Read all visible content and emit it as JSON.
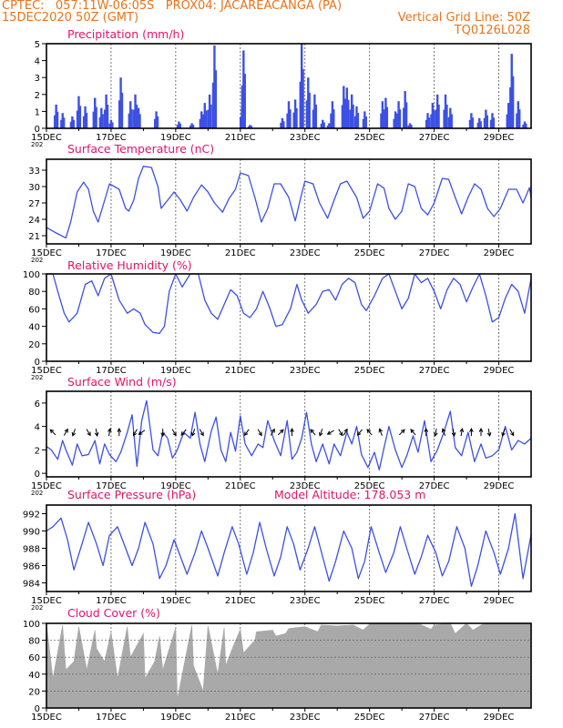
{
  "header": {
    "line1": "CPTEC:   057:11W-06:05S   PROX04: JACAREACANGA (PA)",
    "line2_left": "15DEC2020 50Z (GMT)",
    "line2_right": "Vertical Grid Line: 50Z",
    "line3_right": "TQ0126L028",
    "altitude": "Model Altitude: 178.053 m"
  },
  "colors": {
    "line": "#3c50e6",
    "bar": "#3c50e6",
    "cloud": "#a9a9a9",
    "title": "#e0146a",
    "header": "#e8741c"
  },
  "x_dates": [
    "15DEC",
    "17DEC",
    "19DEC",
    "21DEC",
    "23DEC",
    "25DEC",
    "27DEC",
    "29DEC"
  ],
  "year_label": "202",
  "chart_data": [
    {
      "type": "bar",
      "title": "Precipitation (mm/h)",
      "ylim": [
        0,
        5
      ],
      "yticks": [
        "0",
        "1",
        "2",
        "3",
        "4",
        "5"
      ],
      "x_unit": "days since 15DEC2020 00Z",
      "peaks": [
        [
          0.3,
          1.4
        ],
        [
          0.5,
          0.9
        ],
        [
          0.8,
          0.7
        ],
        [
          1.0,
          1.9
        ],
        [
          1.2,
          1.3
        ],
        [
          1.5,
          1.8
        ],
        [
          1.7,
          1.2
        ],
        [
          1.85,
          2.0
        ],
        [
          2.0,
          0.5
        ],
        [
          2.3,
          3.0
        ],
        [
          2.6,
          1.6
        ],
        [
          2.75,
          2.0
        ],
        [
          2.85,
          1.2
        ],
        [
          3.4,
          1.0
        ],
        [
          4.1,
          0.4
        ],
        [
          4.5,
          0.3
        ],
        [
          4.8,
          1.0
        ],
        [
          4.9,
          1.5
        ],
        [
          5.05,
          2.0
        ],
        [
          5.2,
          4.9
        ],
        [
          6.05,
          1.2
        ],
        [
          6.1,
          4.6
        ],
        [
          6.3,
          0.2
        ],
        [
          7.3,
          0.6
        ],
        [
          7.5,
          1.6
        ],
        [
          7.7,
          1.7
        ],
        [
          7.9,
          5.0
        ],
        [
          8.1,
          3.0
        ],
        [
          8.3,
          2.0
        ],
        [
          8.55,
          0.5
        ],
        [
          8.75,
          0.3
        ],
        [
          8.85,
          1.6
        ],
        [
          9.2,
          2.5
        ],
        [
          9.3,
          2.4
        ],
        [
          9.45,
          2.0
        ],
        [
          9.6,
          1.3
        ],
        [
          9.85,
          1.0
        ],
        [
          10.4,
          1.6
        ],
        [
          10.5,
          1.8
        ],
        [
          10.8,
          1.0
        ],
        [
          10.9,
          1.6
        ],
        [
          11.1,
          2.2
        ],
        [
          11.25,
          0.3
        ],
        [
          11.8,
          0.9
        ],
        [
          11.95,
          1.5
        ],
        [
          12.1,
          2.0
        ],
        [
          12.35,
          2.0
        ],
        [
          12.5,
          1.2
        ],
        [
          13.15,
          0.9
        ],
        [
          13.4,
          0.6
        ],
        [
          13.6,
          1.1
        ],
        [
          13.8,
          0.9
        ],
        [
          14.3,
          1.5
        ],
        [
          14.4,
          4.4
        ],
        [
          14.6,
          1.6
        ],
        [
          14.8,
          0.4
        ]
      ]
    },
    {
      "type": "line",
      "title": "Surface Temperature (nC)",
      "ylim": [
        19.5,
        35
      ],
      "yticks": [
        "21",
        "24",
        "27",
        "30",
        "33"
      ],
      "x_unit": "days since 15DEC2020 00Z",
      "x": [
        0,
        0.3,
        0.6,
        0.75,
        0.95,
        1.15,
        1.3,
        1.45,
        1.6,
        1.75,
        1.95,
        2.25,
        2.45,
        2.55,
        2.7,
        2.85,
        3.0,
        3.25,
        3.45,
        3.55,
        3.75,
        3.95,
        4.15,
        4.35,
        4.55,
        4.8,
        5.0,
        5.2,
        5.45,
        5.65,
        5.85,
        6.0,
        6.25,
        6.45,
        6.65,
        6.85,
        7.05,
        7.25,
        7.5,
        7.7,
        7.85,
        8.0,
        8.25,
        8.45,
        8.7,
        8.9,
        9.1,
        9.3,
        9.6,
        9.8,
        10.0,
        10.25,
        10.45,
        10.6,
        10.8,
        11.0,
        11.2,
        11.4,
        11.6,
        11.8,
        12.0,
        12.25,
        12.45,
        12.65,
        12.85,
        13.05,
        13.25,
        13.45,
        13.65,
        13.85,
        14.05,
        14.3,
        14.55,
        14.75,
        14.95,
        15.0
      ],
      "y": [
        22.5,
        21.5,
        20.6,
        23.5,
        29.0,
        30.8,
        29.5,
        25.5,
        23.5,
        26.5,
        30.5,
        29.5,
        26.0,
        25.5,
        27.5,
        31.5,
        33.7,
        33.5,
        30.0,
        26.0,
        27.5,
        29.0,
        27.5,
        25.5,
        28.0,
        30.3,
        29.0,
        27.0,
        25.3,
        27.8,
        29.5,
        32.5,
        32.0,
        28.0,
        23.5,
        26.0,
        30.5,
        30.5,
        28.0,
        23.7,
        27.5,
        31.0,
        30.5,
        27.0,
        24.2,
        27.5,
        30.5,
        31.0,
        28.0,
        24.2,
        25.5,
        30.5,
        29.7,
        26.0,
        24.0,
        25.5,
        30.5,
        30.0,
        26.0,
        24.8,
        27.0,
        31.5,
        31.3,
        28.0,
        25.0,
        28.0,
        30.5,
        29.5,
        26.0,
        24.5,
        26.0,
        29.5,
        29.5,
        27.0,
        29.8,
        28.0
      ]
    },
    {
      "type": "line",
      "title": "Relative Humidity (%)",
      "ylim": [
        0,
        100
      ],
      "yticks": [
        "0",
        "20",
        "40",
        "60",
        "80",
        "100"
      ],
      "x_unit": "days since 15DEC2020 00Z",
      "x": [
        0,
        0.2,
        0.35,
        0.55,
        0.7,
        0.95,
        1.2,
        1.4,
        1.6,
        1.8,
        2.0,
        2.25,
        2.5,
        2.7,
        2.9,
        3.05,
        3.3,
        3.5,
        3.65,
        3.8,
        4.0,
        4.2,
        4.45,
        4.7,
        4.9,
        5.1,
        5.3,
        5.5,
        5.7,
        5.9,
        6.1,
        6.3,
        6.5,
        6.7,
        6.9,
        7.1,
        7.3,
        7.55,
        7.75,
        7.9,
        8.1,
        8.35,
        8.55,
        8.75,
        8.95,
        9.15,
        9.35,
        9.55,
        9.75,
        9.9,
        10.15,
        10.4,
        10.6,
        10.8,
        11.0,
        11.2,
        11.4,
        11.6,
        11.8,
        12.0,
        12.2,
        12.4,
        12.6,
        12.8,
        13.0,
        13.2,
        13.4,
        13.6,
        13.8,
        14.0,
        14.2,
        14.4,
        14.6,
        14.8,
        15.0
      ],
      "y": [
        100,
        100,
        80,
        55,
        45,
        55,
        88,
        92,
        75,
        95,
        100,
        70,
        55,
        60,
        55,
        42,
        33,
        32,
        40,
        80,
        100,
        85,
        100,
        100,
        70,
        55,
        48,
        65,
        82,
        75,
        55,
        50,
        60,
        80,
        62,
        40,
        42,
        60,
        88,
        70,
        55,
        65,
        80,
        82,
        70,
        88,
        95,
        90,
        65,
        58,
        75,
        95,
        100,
        80,
        60,
        72,
        100,
        90,
        95,
        80,
        60,
        82,
        95,
        88,
        68,
        85,
        100,
        75,
        45,
        50,
        72,
        88,
        80,
        55,
        95
      ]
    },
    {
      "type": "line",
      "title": "Surface Wind (m/s)",
      "ylim": [
        -0.3,
        7.0
      ],
      "yticks": [
        "0",
        "2",
        "4",
        "6"
      ],
      "x_unit": "days since 15DEC2020 00Z",
      "x": [
        0,
        0.15,
        0.35,
        0.5,
        0.6,
        0.8,
        0.95,
        1.1,
        1.3,
        1.5,
        1.65,
        1.8,
        1.95,
        2.15,
        2.3,
        2.5,
        2.65,
        2.8,
        2.95,
        3.1,
        3.3,
        3.45,
        3.6,
        3.75,
        3.9,
        4.05,
        4.25,
        4.45,
        4.6,
        4.75,
        4.9,
        5.1,
        5.25,
        5.4,
        5.55,
        5.7,
        5.85,
        6.0,
        6.15,
        6.35,
        6.55,
        6.7,
        6.85,
        7.05,
        7.25,
        7.45,
        7.6,
        7.75,
        7.9,
        8.05,
        8.2,
        8.35,
        8.55,
        8.75,
        8.9,
        9.1,
        9.3,
        9.45,
        9.6,
        9.75,
        9.95,
        10.15,
        10.3,
        10.45,
        10.6,
        10.8,
        11.0,
        11.15,
        11.35,
        11.5,
        11.7,
        11.9,
        12.1,
        12.3,
        12.5,
        12.65,
        12.85,
        13.05,
        13.25,
        13.45,
        13.6,
        13.8,
        14.0,
        14.2,
        14.4,
        14.6,
        14.8,
        15.0
      ],
      "y": [
        2.3,
        2.0,
        1.2,
        2.8,
        2.0,
        0.7,
        2.5,
        1.5,
        1.6,
        2.8,
        0.8,
        2.5,
        1.6,
        1.0,
        1.8,
        3.5,
        5.0,
        0.6,
        4.5,
        6.2,
        2.0,
        1.5,
        3.5,
        3.0,
        1.3,
        2.0,
        3.5,
        3.0,
        5.2,
        2.5,
        1.0,
        3.6,
        4.8,
        2.0,
        1.0,
        3.5,
        1.9,
        4.9,
        2.5,
        1.5,
        2.5,
        2.2,
        4.5,
        2.8,
        1.5,
        4.5,
        1.2,
        1.8,
        3.0,
        5.2,
        2.5,
        1.0,
        2.5,
        0.8,
        2.5,
        1.5,
        3.5,
        2.5,
        4.0,
        1.6,
        0.5,
        1.8,
        0.3,
        2.2,
        4.0,
        2.0,
        0.5,
        1.5,
        3.2,
        1.8,
        4.5,
        1.0,
        2.0,
        3.5,
        5.3,
        2.2,
        1.5,
        3.5,
        1.0,
        2.5,
        1.3,
        1.5,
        2.0,
        4.0,
        2.0,
        2.8,
        2.5,
        3.0
      ],
      "arrow_x": [
        0.2,
        0.6,
        0.85,
        1.3,
        1.55,
        1.95,
        2.25,
        2.75,
        2.95,
        3.6,
        3.95,
        4.25,
        4.55,
        4.8,
        6.2,
        6.6,
        7.0,
        7.25,
        7.6,
        8.25,
        8.5,
        8.8,
        9.1,
        9.25,
        9.7,
        10.0,
        10.35,
        11.0,
        11.35,
        11.75,
        12.05,
        12.3,
        12.6,
        12.85,
        13.15,
        13.45,
        13.7,
        14.15,
        14.4
      ],
      "arrow_dir_deg": [
        135,
        60,
        250,
        300,
        280,
        80,
        90,
        240,
        215,
        270,
        300,
        230,
        250,
        300,
        235,
        300,
        60,
        45,
        90,
        130,
        250,
        210,
        300,
        60,
        230,
        130,
        110,
        45,
        130,
        90,
        260,
        110,
        280,
        80,
        90,
        90,
        280,
        250,
        300
      ]
    },
    {
      "type": "line",
      "title": "Surface Pressure (hPa)",
      "ylim": [
        983,
        993
      ],
      "yticks": [
        "984",
        "986",
        "988",
        "990",
        "992"
      ],
      "x_unit": "days since 15DEC2020 00Z",
      "x": [
        0,
        0.2,
        0.45,
        0.65,
        0.85,
        1.1,
        1.3,
        1.55,
        1.75,
        1.95,
        2.2,
        2.45,
        2.65,
        2.85,
        3.05,
        3.3,
        3.5,
        3.7,
        3.95,
        4.15,
        4.35,
        4.6,
        4.8,
        5.0,
        5.3,
        5.5,
        5.75,
        5.95,
        6.2,
        6.4,
        6.6,
        6.8,
        7.05,
        7.25,
        7.45,
        7.65,
        7.85,
        8.1,
        8.3,
        8.55,
        8.75,
        8.95,
        9.2,
        9.45,
        9.65,
        9.85,
        10.05,
        10.3,
        10.5,
        10.75,
        10.95,
        11.15,
        11.4,
        11.6,
        11.8,
        12.05,
        12.25,
        12.45,
        12.7,
        12.95,
        13.15,
        13.35,
        13.6,
        13.85,
        14.05,
        14.3,
        14.5,
        14.75,
        15.0
      ],
      "y": [
        990.0,
        990.5,
        991.5,
        989.0,
        985.5,
        988.5,
        991.0,
        988.5,
        986.0,
        989.5,
        990.5,
        988.0,
        986.0,
        988.0,
        991.0,
        988.5,
        984.5,
        986.0,
        989.0,
        987.0,
        985.0,
        987.5,
        990.0,
        988.0,
        984.8,
        987.5,
        990.5,
        988.5,
        985.0,
        987.5,
        991.0,
        988.0,
        984.8,
        987.0,
        990.5,
        988.5,
        985.5,
        988.0,
        990.5,
        987.0,
        984.2,
        986.5,
        990.0,
        988.0,
        984.5,
        986.5,
        990.5,
        987.5,
        985.2,
        987.5,
        990.5,
        988.0,
        985.0,
        987.0,
        989.5,
        987.5,
        984.8,
        986.5,
        990.5,
        988.0,
        983.6,
        986.0,
        990.0,
        987.5,
        985.0,
        988.0,
        992.0,
        984.5,
        989.6
      ]
    },
    {
      "type": "area",
      "title": "Cloud Cover (%)",
      "ylim": [
        0,
        100
      ],
      "yticks": [
        "0",
        "20",
        "40",
        "60",
        "80",
        "100"
      ],
      "x_unit": "days since 15DEC2020 00Z",
      "x": [
        0,
        0.5,
        1.0,
        1.5,
        2.0,
        2.5,
        3.0,
        3.5,
        4.0,
        4.5,
        5.0,
        5.5,
        6.0,
        6.5,
        7.0,
        7.5,
        8.0,
        8.5,
        9.0,
        9.5,
        10.0,
        10.5,
        11.0,
        11.5,
        12.0,
        12.5,
        13.0,
        13.5,
        14.0,
        14.5,
        15.0
      ],
      "y": [
        100,
        98,
        96,
        92,
        90,
        96,
        88,
        85,
        95,
        98,
        97,
        95,
        93,
        90,
        92,
        94,
        96,
        98,
        97,
        98,
        99,
        100,
        99,
        100,
        98,
        100,
        100,
        99,
        100,
        100,
        100
      ],
      "dips": [
        [
          0.2,
          35
        ],
        [
          0.6,
          45
        ],
        [
          0.85,
          55
        ],
        [
          1.25,
          45
        ],
        [
          1.55,
          70
        ],
        [
          1.8,
          55
        ],
        [
          2.2,
          35
        ],
        [
          2.6,
          60
        ],
        [
          3.05,
          35
        ],
        [
          3.35,
          55
        ],
        [
          3.6,
          45
        ],
        [
          4.05,
          10
        ],
        [
          4.55,
          50
        ],
        [
          4.85,
          20
        ],
        [
          5.3,
          40
        ],
        [
          5.55,
          50
        ],
        [
          5.75,
          70
        ],
        [
          6.1,
          65
        ],
        [
          6.45,
          80
        ],
        [
          7.1,
          85
        ],
        [
          7.4,
          88
        ],
        [
          8.4,
          90
        ],
        [
          9.8,
          92
        ],
        [
          11.9,
          93
        ],
        [
          12.65,
          88
        ],
        [
          13.2,
          92
        ]
      ]
    }
  ]
}
